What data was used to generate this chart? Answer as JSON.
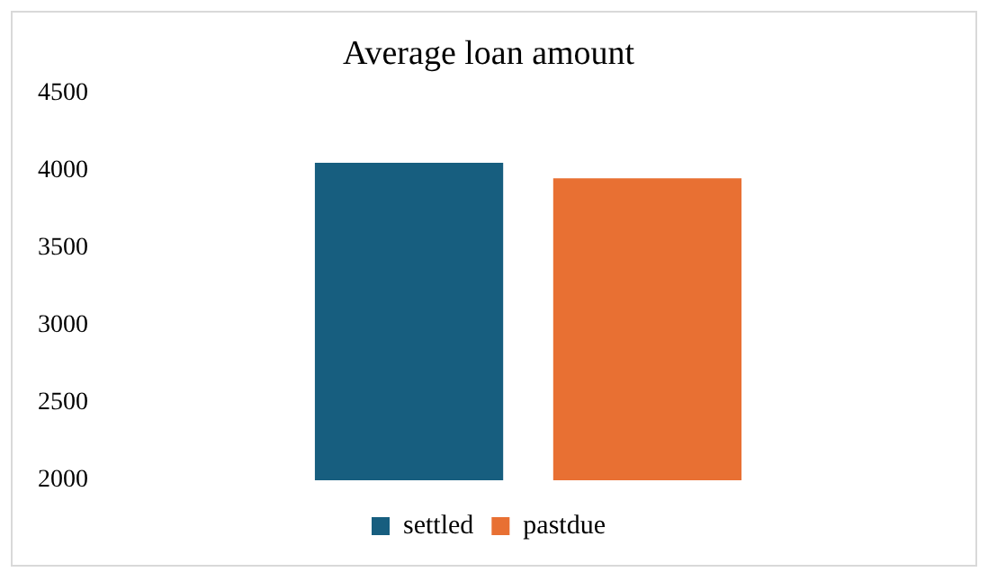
{
  "chart_data": {
    "type": "bar",
    "title": "Average loan amount",
    "categories": [
      null
    ],
    "series": [
      {
        "name": "settled",
        "color": "#175e7f",
        "values": [
          4050
        ]
      },
      {
        "name": "pastdue",
        "color": "#e87033",
        "values": [
          3950
        ]
      }
    ],
    "ylim": [
      2000,
      4500
    ],
    "yticks": [
      2000,
      2500,
      3000,
      3500,
      4000,
      4500
    ],
    "grid": false,
    "legend": "bottom",
    "tick_labels": "y"
  }
}
